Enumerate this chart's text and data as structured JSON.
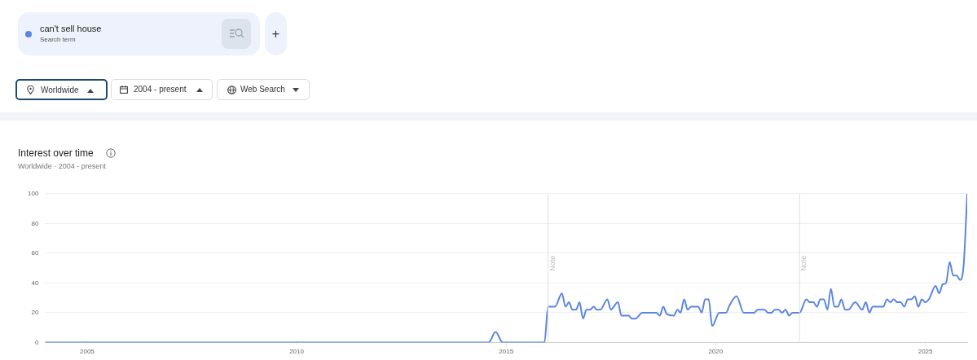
{
  "chart_data": {
    "type": "line",
    "title": "Interest over time",
    "subtitle": "Worldwide · 2004 - present",
    "annotations": [
      "Search term",
      "Worldwide",
      "2004 - present",
      "Web Search",
      "+"
    ],
    "legend": "top left",
    "grid": "y",
    "xlim": [
      "2004-01",
      "2026-01"
    ],
    "xticks": [
      "2005",
      "2010",
      "2015",
      "2020",
      "2025"
    ],
    "ylim": [
      0,
      100
    ],
    "yticks": [
      0,
      20,
      40,
      60,
      80,
      100
    ],
    "ref_lines": [
      {
        "axis": "x",
        "value": "2016-01",
        "label": "Note",
        "color": "#e0e0e0"
      },
      {
        "axis": "x",
        "value": "2022-01",
        "label": "Note",
        "color": "#e0e0e0"
      }
    ],
    "series": [
      {
        "name": "can't sell house",
        "color": "#5b86e0",
        "x": [
          "2004-01",
          "2014-08",
          "2014-10",
          "2014-12",
          "2015-12",
          "2016-01",
          "2016-03",
          "2016-05",
          "2016-06",
          "2016-07",
          "2016-08",
          "2016-09",
          "2016-10",
          "2016-11",
          "2016-12",
          "2017-01",
          "2017-02",
          "2017-03",
          "2017-04",
          "2017-06",
          "2017-07",
          "2017-09",
          "2017-10",
          "2017-12",
          "2018-01",
          "2018-02",
          "2018-04",
          "2018-08",
          "2018-09",
          "2018-10",
          "2018-11",
          "2019-01",
          "2019-02",
          "2019-03",
          "2019-04",
          "2019-05",
          "2019-06",
          "2019-08",
          "2019-09",
          "2019-10",
          "2019-11",
          "2019-12",
          "2020-02",
          "2020-04",
          "2020-05",
          "2020-07",
          "2020-09",
          "2020-12",
          "2021-01",
          "2021-03",
          "2021-04",
          "2021-05",
          "2021-06",
          "2021-07",
          "2021-08",
          "2021-09",
          "2021-10",
          "2021-11",
          "2022-01",
          "2022-03",
          "2022-04",
          "2022-05",
          "2022-06",
          "2022-07",
          "2022-08",
          "2022-09",
          "2022-10",
          "2022-11",
          "2022-12",
          "2023-01",
          "2023-02",
          "2023-03",
          "2023-05",
          "2023-07",
          "2023-08",
          "2023-09",
          "2023-10",
          "2024-01",
          "2024-02",
          "2024-03",
          "2024-04",
          "2024-05",
          "2024-06",
          "2024-07",
          "2024-08",
          "2024-09",
          "2024-10",
          "2024-11",
          "2024-12",
          "2025-01",
          "2025-02",
          "2025-04",
          "2025-05",
          "2025-06",
          "2025-07",
          "2025-08",
          "2025-09",
          "2025-10",
          "2025-11",
          "2025-12",
          "2026-01"
        ],
        "values": [
          0,
          0,
          7,
          0,
          0,
          24,
          24,
          33,
          24,
          27,
          22,
          22,
          27,
          16,
          22,
          22,
          24,
          22,
          22,
          29,
          22,
          27,
          18,
          18,
          16,
          16,
          20,
          20,
          18,
          24,
          19,
          18,
          22,
          20,
          29,
          22,
          24,
          24,
          20,
          29,
          29,
          11,
          20,
          20,
          25,
          31,
          20,
          20,
          22,
          22,
          20,
          20,
          22,
          22,
          20,
          22,
          18,
          20,
          20,
          29,
          27,
          27,
          24,
          29,
          29,
          22,
          36,
          24,
          24,
          29,
          22,
          22,
          27,
          22,
          27,
          20,
          24,
          24,
          29,
          27,
          29,
          27,
          27,
          24,
          29,
          29,
          31,
          24,
          29,
          27,
          29,
          38,
          33,
          39,
          40,
          54,
          45,
          45,
          42,
          52,
          100
        ]
      }
    ]
  }
}
